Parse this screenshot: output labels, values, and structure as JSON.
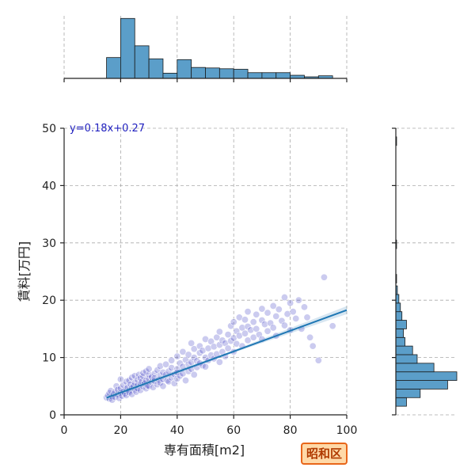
{
  "chart_data": {
    "type": "scatter",
    "xlabel": "専有面積[m2]",
    "ylabel": "賃料[万円]",
    "xlim": [
      0,
      100
    ],
    "ylim": [
      0,
      50
    ],
    "x_ticks": [
      "0",
      "20",
      "40",
      "60",
      "80",
      "100"
    ],
    "y_ticks": [
      "0",
      "10",
      "20",
      "30",
      "40",
      "50"
    ],
    "grid": true,
    "point_color": "#3030c0",
    "regression": {
      "label": "y=0.18x+0.27",
      "slope": 0.18,
      "intercept": 0.27,
      "x_range": [
        15,
        100
      ],
      "color": "#1f77b4"
    },
    "points": [
      [
        15,
        3.0
      ],
      [
        15.5,
        3.4
      ],
      [
        16,
        2.8
      ],
      [
        16,
        3.8
      ],
      [
        16.5,
        4.2
      ],
      [
        17,
        3.2
      ],
      [
        17,
        2.6
      ],
      [
        17.5,
        3.6
      ],
      [
        18,
        4.0
      ],
      [
        18,
        3.1
      ],
      [
        18.5,
        5.0
      ],
      [
        19,
        3.5
      ],
      [
        19,
        4.4
      ],
      [
        19.5,
        2.9
      ],
      [
        20,
        3.8
      ],
      [
        20,
        4.6
      ],
      [
        20,
        6.2
      ],
      [
        20.5,
        3.3
      ],
      [
        21,
        4.1
      ],
      [
        21,
        5.2
      ],
      [
        21.5,
        3.7
      ],
      [
        22,
        4.5
      ],
      [
        22,
        5.8
      ],
      [
        22,
        3.4
      ],
      [
        22.5,
        4.8
      ],
      [
        23,
        4.2
      ],
      [
        23,
        6.0
      ],
      [
        23,
        3.9
      ],
      [
        23.5,
        5.3
      ],
      [
        24,
        4.7
      ],
      [
        24,
        6.5
      ],
      [
        24,
        3.6
      ],
      [
        24.5,
        5.0
      ],
      [
        25,
        4.4
      ],
      [
        25,
        5.6
      ],
      [
        25,
        6.8
      ],
      [
        25.5,
        4.0
      ],
      [
        26,
        5.2
      ],
      [
        26,
        6.1
      ],
      [
        26,
        4.6
      ],
      [
        26.5,
        7.0
      ],
      [
        27,
        5.4
      ],
      [
        27,
        4.3
      ],
      [
        27,
        6.4
      ],
      [
        27.5,
        5.8
      ],
      [
        28,
        4.9
      ],
      [
        28,
        6.7
      ],
      [
        28,
        7.3
      ],
      [
        28.5,
        5.5
      ],
      [
        29,
        6.0
      ],
      [
        29,
        4.6
      ],
      [
        29,
        7.6
      ],
      [
        29.5,
        5.1
      ],
      [
        30,
        6.3
      ],
      [
        30,
        5.0
      ],
      [
        30,
        7.0
      ],
      [
        30,
        8.0
      ],
      [
        31,
        5.7
      ],
      [
        31,
        6.6
      ],
      [
        31.5,
        4.8
      ],
      [
        32,
        7.2
      ],
      [
        32,
        5.9
      ],
      [
        32,
        6.4
      ],
      [
        33,
        5.3
      ],
      [
        33,
        7.8
      ],
      [
        33.5,
        6.1
      ],
      [
        34,
        6.9
      ],
      [
        34,
        5.6
      ],
      [
        34,
        8.5
      ],
      [
        35,
        6.2
      ],
      [
        35,
        7.4
      ],
      [
        35,
        5.0
      ],
      [
        36,
        7.0
      ],
      [
        36,
        8.8
      ],
      [
        36.5,
        6.0
      ],
      [
        37,
        7.6
      ],
      [
        37,
        5.8
      ],
      [
        38,
        6.5
      ],
      [
        38,
        8.2
      ],
      [
        38,
        9.5
      ],
      [
        39,
        7.1
      ],
      [
        39,
        5.5
      ],
      [
        40,
        8.0
      ],
      [
        40,
        6.3
      ],
      [
        40,
        10.2
      ],
      [
        40,
        7.4
      ],
      [
        41,
        9.0
      ],
      [
        41,
        6.8
      ],
      [
        42,
        8.4
      ],
      [
        42,
        11.0
      ],
      [
        42,
        7.2
      ],
      [
        43,
        9.6
      ],
      [
        43,
        6.0
      ],
      [
        44,
        8.8
      ],
      [
        44,
        10.5
      ],
      [
        44,
        7.6
      ],
      [
        45,
        9.2
      ],
      [
        45,
        12.5
      ],
      [
        45,
        8.0
      ],
      [
        46,
        10.0
      ],
      [
        46,
        7.0
      ],
      [
        46,
        11.5
      ],
      [
        47,
        9.4
      ],
      [
        47,
        8.3
      ],
      [
        48,
        10.8
      ],
      [
        48,
        12.0
      ],
      [
        48,
        9.0
      ],
      [
        49,
        8.6
      ],
      [
        49,
        11.2
      ],
      [
        50,
        10.0
      ],
      [
        50,
        13.2
      ],
      [
        50,
        8.4
      ],
      [
        51,
        11.6
      ],
      [
        51,
        9.5
      ],
      [
        52,
        10.4
      ],
      [
        52,
        12.8
      ],
      [
        53,
        9.8
      ],
      [
        53,
        11.9
      ],
      [
        54,
        13.5
      ],
      [
        54,
        10.6
      ],
      [
        55,
        12.2
      ],
      [
        55,
        9.2
      ],
      [
        55,
        14.5
      ],
      [
        56,
        11.0
      ],
      [
        56,
        13.0
      ],
      [
        57,
        12.5
      ],
      [
        57,
        10.2
      ],
      [
        58,
        14.0
      ],
      [
        58,
        11.6
      ],
      [
        59,
        12.9
      ],
      [
        59,
        15.5
      ],
      [
        60,
        13.4
      ],
      [
        60,
        11.0
      ],
      [
        60,
        16.2
      ],
      [
        61,
        12.4
      ],
      [
        61,
        14.6
      ],
      [
        62,
        13.8
      ],
      [
        62,
        17.0
      ],
      [
        63,
        12.0
      ],
      [
        63,
        15.2
      ],
      [
        64,
        14.2
      ],
      [
        64,
        16.6
      ],
      [
        65,
        13.0
      ],
      [
        65,
        18.0
      ],
      [
        65,
        15.4
      ],
      [
        66,
        14.8
      ],
      [
        67,
        16.2
      ],
      [
        67,
        13.5
      ],
      [
        68,
        17.5
      ],
      [
        68,
        15.0
      ],
      [
        69,
        14.0
      ],
      [
        70,
        16.5
      ],
      [
        70,
        18.5
      ],
      [
        70,
        13.2
      ],
      [
        71,
        15.8
      ],
      [
        72,
        17.8
      ],
      [
        72,
        14.6
      ],
      [
        73,
        16.0
      ],
      [
        74,
        19.0
      ],
      [
        74,
        15.2
      ],
      [
        75,
        17.2
      ],
      [
        75,
        13.8
      ],
      [
        76,
        18.4
      ],
      [
        77,
        16.4
      ],
      [
        78,
        20.5
      ],
      [
        78,
        15.6
      ],
      [
        79,
        17.6
      ],
      [
        80,
        19.5
      ],
      [
        80,
        14.8
      ],
      [
        81,
        18.0
      ],
      [
        82,
        16.8
      ],
      [
        83,
        20.0
      ],
      [
        84,
        15.0
      ],
      [
        85,
        18.8
      ],
      [
        86,
        17.0
      ],
      [
        87,
        13.5
      ],
      [
        88,
        12.0
      ],
      [
        90,
        9.5
      ],
      [
        92,
        24.0
      ],
      [
        95,
        15.5
      ]
    ],
    "top_histogram": {
      "bins": [
        [
          15,
          20,
          8
        ],
        [
          20,
          25,
          23
        ],
        [
          25,
          30,
          12.5
        ],
        [
          30,
          35,
          7.5
        ],
        [
          35,
          40,
          2
        ],
        [
          40,
          45,
          7.2
        ],
        [
          45,
          50,
          4.2
        ],
        [
          50,
          55,
          4
        ],
        [
          55,
          60,
          3.7
        ],
        [
          60,
          65,
          3.5
        ],
        [
          65,
          70,
          2.2
        ],
        [
          70,
          75,
          2.2
        ],
        [
          75,
          80,
          2.2
        ],
        [
          80,
          85,
          1.2
        ],
        [
          85,
          90,
          0.6
        ],
        [
          90,
          95,
          1.0
        ]
      ],
      "max_count": 24
    },
    "right_histogram": {
      "bins": [
        [
          1.5,
          3,
          7
        ],
        [
          3,
          4.5,
          16
        ],
        [
          4.5,
          6,
          34
        ],
        [
          6,
          7.5,
          40
        ],
        [
          7.5,
          9,
          25
        ],
        [
          9,
          10.5,
          14
        ],
        [
          10.5,
          12,
          11
        ],
        [
          12,
          13.5,
          6
        ],
        [
          13.5,
          15,
          5
        ],
        [
          15,
          16.5,
          7
        ],
        [
          16.5,
          18,
          4
        ],
        [
          18,
          19.5,
          3
        ],
        [
          19.5,
          21,
          2
        ],
        [
          21,
          22.5,
          1
        ],
        [
          23,
          24.5,
          0.5
        ],
        [
          29,
          30.5,
          0.5
        ],
        [
          47,
          48.5,
          0.5
        ]
      ],
      "max_count": 40
    }
  },
  "badge": {
    "label": "昭和区"
  }
}
